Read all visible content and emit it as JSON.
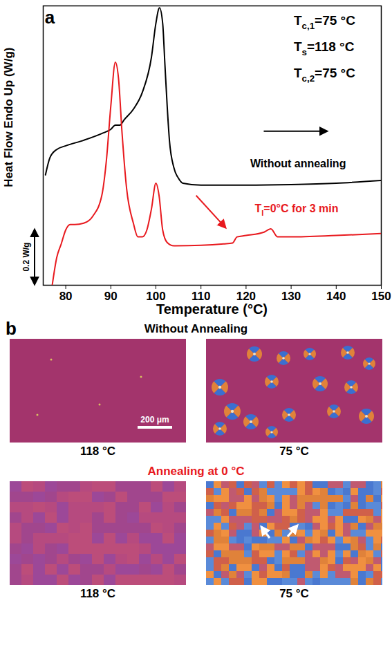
{
  "chart_data": {
    "type": "line",
    "panel_label": "a",
    "y_label": "Heat Flow Endo Up (W/g)",
    "x_label": "Temperature (°C)",
    "xlim": [
      75,
      150
    ],
    "xticks": [
      80,
      90,
      100,
      110,
      120,
      130,
      140,
      150
    ],
    "ylim": [
      0,
      1
    ],
    "yticks": [],
    "tick_labels": "x",
    "grid": false,
    "scale_bar": {
      "value": 0.2,
      "label": "0.2 W/g"
    },
    "annotations": [
      {
        "parts": [
          {
            "text": "T"
          },
          {
            "text": "c,1",
            "subscript": true
          },
          {
            "text": "=75 °C"
          }
        ]
      },
      {
        "parts": [
          {
            "text": "T"
          },
          {
            "text": "s",
            "subscript": true
          },
          {
            "text": "=118 °C"
          }
        ]
      },
      {
        "parts": [
          {
            "text": "T"
          },
          {
            "text": "c,2",
            "subscript": true
          },
          {
            "text": "=75 °C"
          }
        ]
      }
    ],
    "series": [
      {
        "label": [
          {
            "text": "Without annealing"
          }
        ],
        "color": "#000000",
        "x": [
          75.5,
          76.5,
          78,
          80,
          84,
          88,
          90,
          91,
          92,
          93,
          95,
          97,
          99,
          100,
          100.8,
          101.5,
          102,
          102.5,
          103,
          104,
          105,
          106,
          110,
          120,
          130,
          140,
          150
        ],
        "values": [
          0.395,
          0.457,
          0.486,
          0.499,
          0.519,
          0.543,
          0.558,
          0.573,
          0.573,
          0.593,
          0.63,
          0.691,
          0.815,
          0.938,
          0.993,
          0.938,
          0.79,
          0.642,
          0.519,
          0.42,
          0.383,
          0.365,
          0.358,
          0.358,
          0.36,
          0.365,
          0.375
        ]
      },
      {
        "label": [
          {
            "text": "T"
          },
          {
            "text": "I",
            "subscript": true
          },
          {
            "text": "=0°C for 3 min"
          }
        ],
        "color": "#e8191e",
        "x": [
          77,
          78,
          79,
          80,
          81,
          82,
          84,
          86,
          88,
          89,
          90,
          91,
          91.7,
          92.5,
          93.5,
          95,
          96,
          97,
          98,
          99,
          100,
          100.7,
          101.5,
          102.5,
          104,
          110,
          115,
          117,
          118,
          120,
          124,
          125.5,
          127,
          130,
          140,
          150
        ],
        "values": [
          0.0,
          0.099,
          0.148,
          0.198,
          0.217,
          0.217,
          0.222,
          0.247,
          0.321,
          0.444,
          0.642,
          0.798,
          0.741,
          0.543,
          0.346,
          0.222,
          0.173,
          0.173,
          0.198,
          0.272,
          0.365,
          0.321,
          0.198,
          0.153,
          0.141,
          0.143,
          0.148,
          0.151,
          0.173,
          0.178,
          0.19,
          0.202,
          0.173,
          0.173,
          0.178,
          0.185
        ]
      }
    ]
  },
  "panel_b": {
    "label": "b",
    "rows": [
      {
        "title": "Without Annealing",
        "title_color": "#000000",
        "images": [
          {
            "caption": "118 °C",
            "scale_bar": "200 μm"
          },
          {
            "caption": "75 °C"
          }
        ]
      },
      {
        "title": "Annealing at 0 °C",
        "title_color": "#e8191e",
        "images": [
          {
            "caption": "118 °C"
          },
          {
            "caption": "75 °C"
          }
        ]
      }
    ]
  }
}
